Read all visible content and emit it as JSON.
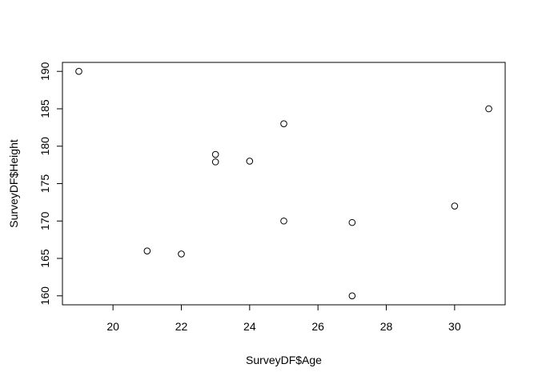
{
  "chart_data": {
    "type": "scatter",
    "title": "",
    "xlabel": "SurveyDF$Age",
    "ylabel": "SurveyDF$Height",
    "xlim": [
      18.52,
      31.48
    ],
    "ylim": [
      158.8,
      191.2
    ],
    "x_ticks": [
      20,
      22,
      24,
      26,
      28,
      30
    ],
    "y_ticks": [
      160,
      165,
      170,
      175,
      180,
      185,
      190
    ],
    "grid": false,
    "legend": "none",
    "marker": "open-circle",
    "point_color": "#000000",
    "series": [
      {
        "x": [
          19,
          21,
          22,
          23,
          23,
          24,
          25,
          25,
          27,
          27,
          30,
          31
        ],
        "y": [
          190,
          166,
          165.6,
          178.9,
          177.9,
          178,
          183,
          170,
          169.8,
          160,
          172,
          185
        ]
      }
    ]
  }
}
